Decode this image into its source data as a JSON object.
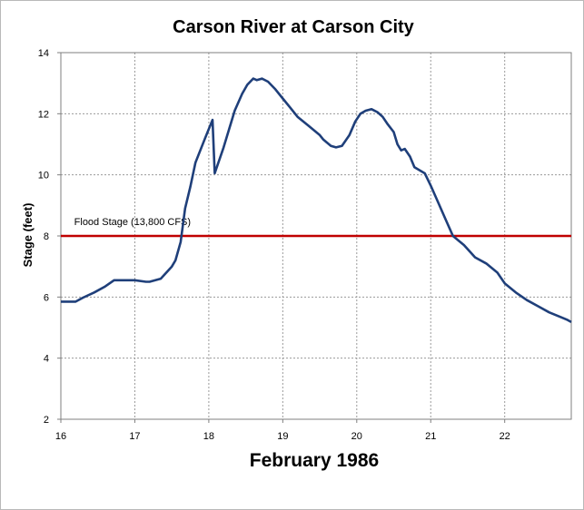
{
  "chart_data": {
    "type": "line",
    "title": "Carson River at Carson City",
    "xlabel": "February 1986",
    "ylabel": "Stage (feet)",
    "xlim": [
      16,
      22.9
    ],
    "ylim": [
      2,
      14
    ],
    "x_ticks": [
      "16",
      "17",
      "18",
      "19",
      "20",
      "21",
      "22"
    ],
    "y_ticks": [
      "2",
      "4",
      "6",
      "8",
      "10",
      "12",
      "14"
    ],
    "grid": true,
    "colors": {
      "series": "#1f3f7a",
      "flood_line": "#c00000",
      "grid": "#9a9a9a"
    },
    "annotation": {
      "text": "Flood Stage (13,800 CFS)",
      "at": [
        16.18,
        8.35
      ]
    },
    "flood_stage": {
      "y": 8
    },
    "series": [
      {
        "points": [
          [
            16.0,
            5.85
          ],
          [
            16.2,
            5.85
          ],
          [
            16.3,
            5.98
          ],
          [
            16.45,
            6.15
          ],
          [
            16.6,
            6.35
          ],
          [
            16.72,
            6.55
          ],
          [
            16.8,
            6.55
          ],
          [
            17.0,
            6.55
          ],
          [
            17.15,
            6.5
          ],
          [
            17.2,
            6.5
          ],
          [
            17.35,
            6.6
          ],
          [
            17.5,
            7.0
          ],
          [
            17.55,
            7.2
          ],
          [
            17.62,
            7.8
          ],
          [
            17.68,
            8.9
          ],
          [
            17.75,
            9.6
          ],
          [
            17.82,
            10.4
          ],
          [
            17.95,
            11.2
          ],
          [
            18.05,
            11.8
          ],
          [
            18.08,
            10.05
          ],
          [
            18.2,
            10.9
          ],
          [
            18.35,
            12.1
          ],
          [
            18.45,
            12.65
          ],
          [
            18.52,
            12.95
          ],
          [
            18.6,
            13.15
          ],
          [
            18.65,
            13.1
          ],
          [
            18.72,
            13.15
          ],
          [
            18.8,
            13.05
          ],
          [
            18.9,
            12.8
          ],
          [
            19.0,
            12.5
          ],
          [
            19.1,
            12.2
          ],
          [
            19.2,
            11.9
          ],
          [
            19.35,
            11.6
          ],
          [
            19.5,
            11.3
          ],
          [
            19.55,
            11.15
          ],
          [
            19.65,
            10.95
          ],
          [
            19.72,
            10.9
          ],
          [
            19.8,
            10.95
          ],
          [
            19.9,
            11.3
          ],
          [
            19.98,
            11.75
          ],
          [
            20.05,
            12.0
          ],
          [
            20.12,
            12.1
          ],
          [
            20.2,
            12.15
          ],
          [
            20.28,
            12.05
          ],
          [
            20.35,
            11.9
          ],
          [
            20.42,
            11.65
          ],
          [
            20.5,
            11.4
          ],
          [
            20.55,
            11.0
          ],
          [
            20.6,
            10.8
          ],
          [
            20.65,
            10.85
          ],
          [
            20.72,
            10.6
          ],
          [
            20.78,
            10.25
          ],
          [
            20.85,
            10.15
          ],
          [
            20.92,
            10.05
          ],
          [
            21.0,
            9.65
          ],
          [
            21.1,
            9.1
          ],
          [
            21.2,
            8.55
          ],
          [
            21.3,
            8.0
          ],
          [
            21.45,
            7.7
          ],
          [
            21.6,
            7.3
          ],
          [
            21.75,
            7.1
          ],
          [
            21.9,
            6.8
          ],
          [
            22.0,
            6.45
          ],
          [
            22.15,
            6.15
          ],
          [
            22.3,
            5.9
          ],
          [
            22.45,
            5.7
          ],
          [
            22.6,
            5.5
          ],
          [
            22.75,
            5.35
          ],
          [
            22.85,
            5.25
          ],
          [
            22.9,
            5.18
          ]
        ]
      }
    ]
  }
}
